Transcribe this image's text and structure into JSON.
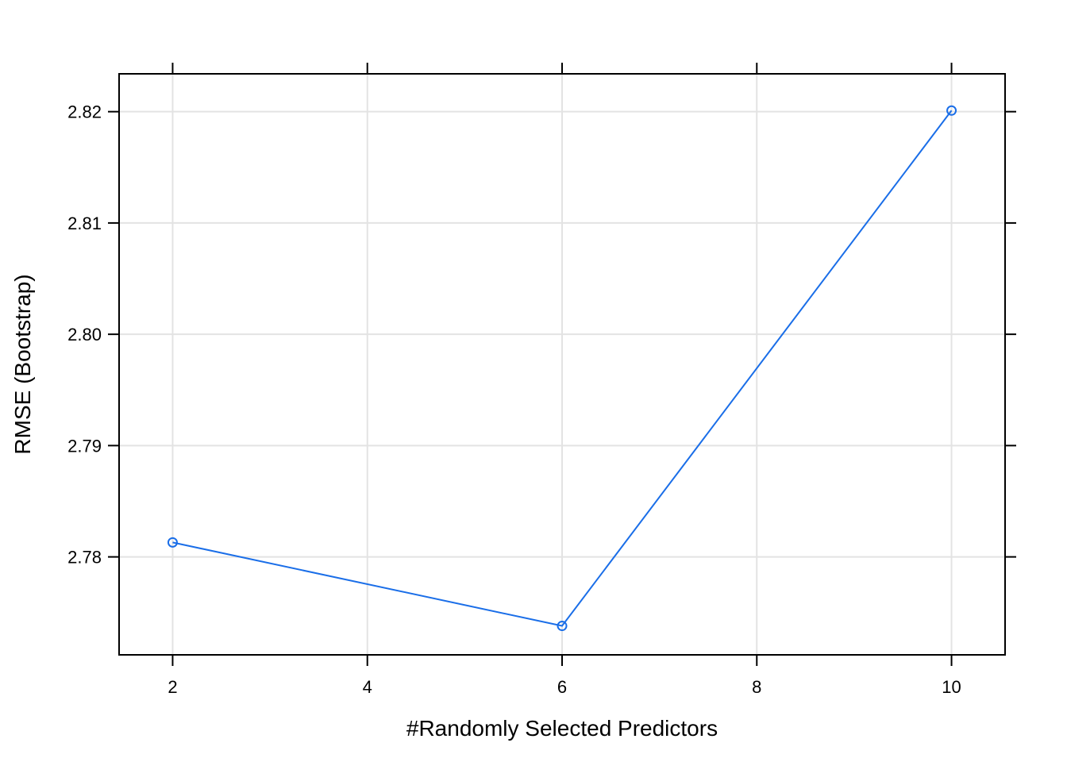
{
  "chart_data": {
    "type": "line",
    "xlabel": "#Randomly Selected Predictors",
    "ylabel": "RMSE (Bootstrap)",
    "xlim": [
      1.45,
      10.55
    ],
    "ylim": [
      2.7712,
      2.8234
    ],
    "x_ticks": [
      2,
      4,
      6,
      8,
      10
    ],
    "x_tick_labels": [
      "2",
      "4",
      "6",
      "8",
      "10"
    ],
    "y_ticks": [
      2.78,
      2.79,
      2.8,
      2.81,
      2.82
    ],
    "y_tick_labels": [
      "2.78",
      "2.79",
      "2.80",
      "2.81",
      "2.82"
    ],
    "grid": true,
    "series": [
      {
        "color": "#1a6ee8",
        "marker": "open-circle",
        "x": [
          2,
          6,
          10
        ],
        "y": [
          2.7813,
          2.7738,
          2.8201
        ]
      }
    ]
  }
}
